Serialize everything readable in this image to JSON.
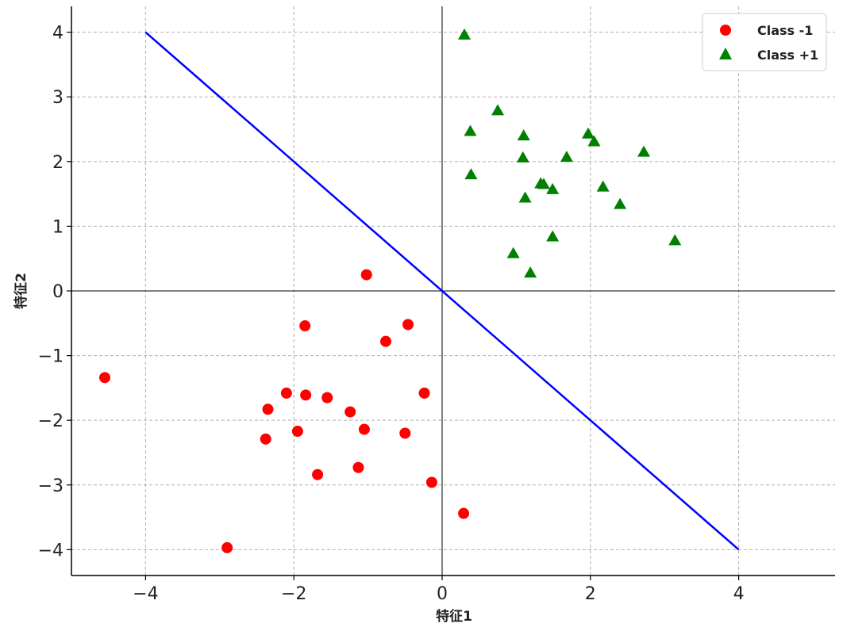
{
  "chart_data": {
    "type": "scatter",
    "title": "",
    "xlabel": "特征1",
    "ylabel": "特征2",
    "xlim": [
      -5,
      5.3
    ],
    "ylim": [
      -4.4,
      4.4
    ],
    "xticks": [
      -4,
      -2,
      0,
      2,
      4
    ],
    "yticks": [
      -4,
      -3,
      -2,
      -1,
      0,
      1,
      2,
      3,
      4
    ],
    "xtick_labels": [
      "−4",
      "−2",
      "0",
      "2",
      "4"
    ],
    "ytick_labels": [
      "−4",
      "−3",
      "−2",
      "−1",
      "0",
      "1",
      "2",
      "3",
      "4"
    ],
    "grid": true,
    "legend_position": "top-right",
    "series": [
      {
        "name": "Class -1",
        "marker": "circle",
        "color": "#ff0000",
        "points": [
          [
            -4.55,
            -1.34
          ],
          [
            -2.9,
            -3.97
          ],
          [
            -2.38,
            -2.29
          ],
          [
            -2.35,
            -1.83
          ],
          [
            -2.1,
            -1.58
          ],
          [
            -1.95,
            -2.17
          ],
          [
            -1.85,
            -0.54
          ],
          [
            -1.84,
            -1.61
          ],
          [
            -1.68,
            -2.84
          ],
          [
            -1.55,
            -1.65
          ],
          [
            -1.24,
            -1.87
          ],
          [
            -1.13,
            -2.73
          ],
          [
            -1.05,
            -2.14
          ],
          [
            -1.02,
            0.25
          ],
          [
            -0.76,
            -0.78
          ],
          [
            -0.5,
            -2.2
          ],
          [
            -0.46,
            -0.52
          ],
          [
            -0.24,
            -1.58
          ],
          [
            -0.14,
            -2.96
          ],
          [
            0.29,
            -3.44
          ]
        ]
      },
      {
        "name": "Class +1",
        "marker": "triangle",
        "color": "#008000",
        "points": [
          [
            0.3,
            3.96
          ],
          [
            0.38,
            2.47
          ],
          [
            0.39,
            1.8
          ],
          [
            0.75,
            2.79
          ],
          [
            0.96,
            0.58
          ],
          [
            1.09,
            2.06
          ],
          [
            1.1,
            2.4
          ],
          [
            1.12,
            1.44
          ],
          [
            1.19,
            0.28
          ],
          [
            1.33,
            1.66
          ],
          [
            1.37,
            1.65
          ],
          [
            1.49,
            1.57
          ],
          [
            1.49,
            0.84
          ],
          [
            1.68,
            2.07
          ],
          [
            1.97,
            2.43
          ],
          [
            2.05,
            2.31
          ],
          [
            2.17,
            1.61
          ],
          [
            2.4,
            1.34
          ],
          [
            2.72,
            2.15
          ],
          [
            3.14,
            0.78
          ]
        ]
      }
    ],
    "lines": [
      {
        "kind": "decision_boundary",
        "color": "#0000ff",
        "points": [
          [
            -4,
            4
          ],
          [
            4,
            -4
          ]
        ]
      }
    ]
  }
}
